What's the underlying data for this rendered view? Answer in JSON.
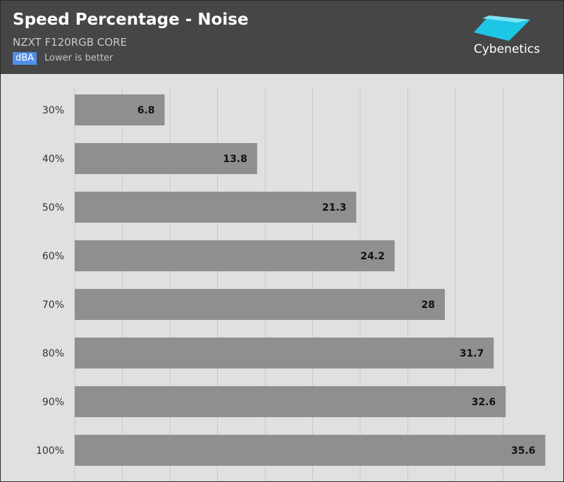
{
  "header": {
    "title": "Speed Percentage - Noise",
    "subtitle": "NZXT F120RGB CORE",
    "unit_badge": "dBA",
    "note": "Lower is better",
    "logo_text": "Cybenetics"
  },
  "colors": {
    "header_bg": "#464646",
    "plot_bg": "#e0e0e0",
    "bar": "#8f8f8f",
    "badge": "#4f8fe9",
    "logo_accent": "#1ec6e6"
  },
  "icons": {
    "logo": "cybenetics-logo-icon"
  },
  "chart_data": {
    "type": "bar",
    "orientation": "horizontal",
    "title": "Speed Percentage - Noise",
    "subtitle": "NZXT F120RGB CORE",
    "unit": "dBA",
    "categories": [
      "30%",
      "40%",
      "50%",
      "60%",
      "70%",
      "80%",
      "90%",
      "100%"
    ],
    "values": [
      6.8,
      13.8,
      21.3,
      24.2,
      28,
      31.7,
      32.6,
      35.6
    ],
    "value_labels": [
      "6.8",
      "13.8",
      "21.3",
      "24.2",
      "28",
      "31.7",
      "32.6",
      "35.6"
    ],
    "xlim": [
      0,
      36
    ],
    "grid": true,
    "legend": "none"
  }
}
